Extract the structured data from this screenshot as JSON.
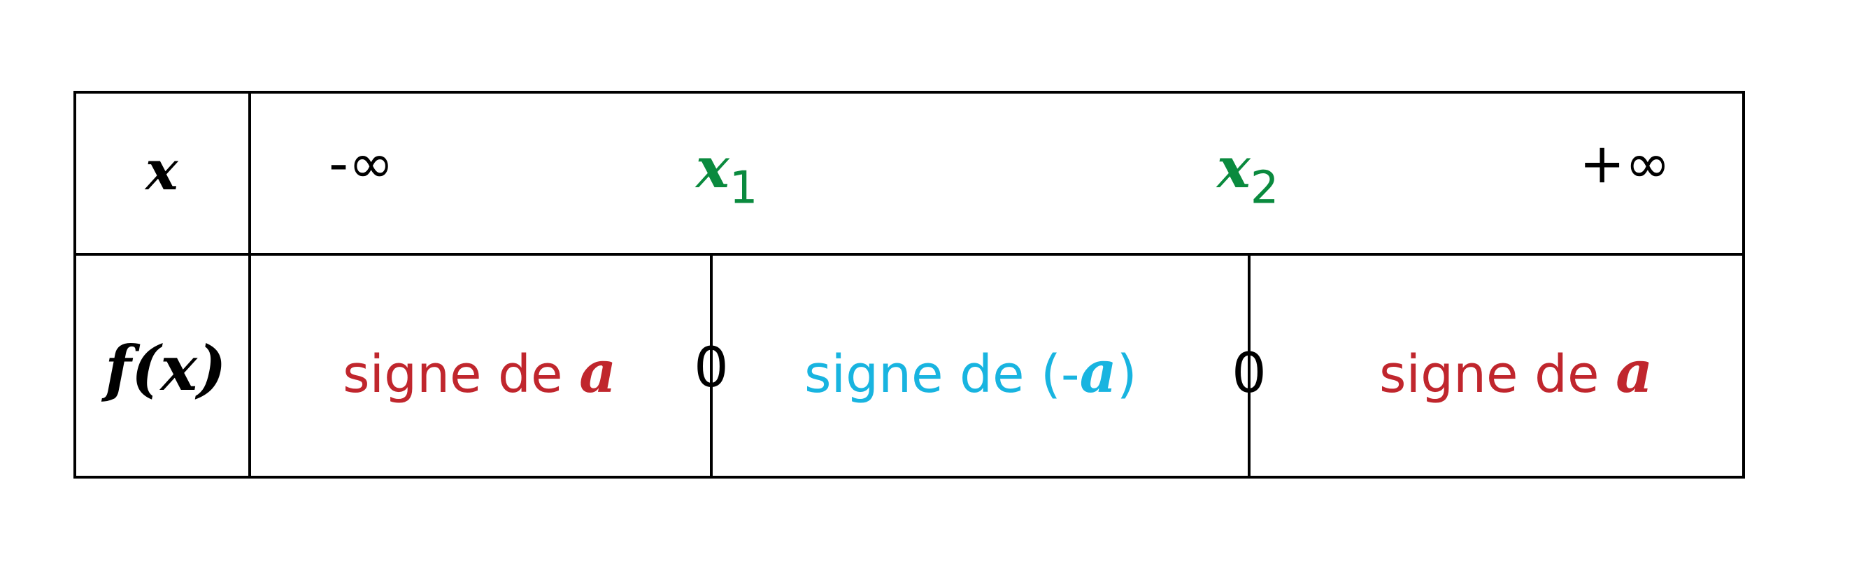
{
  "row_headers": {
    "x": "x",
    "fx": "f(x)"
  },
  "x_values": {
    "minus_inf": "-∞",
    "x1_base": "x",
    "x1_sub": "1",
    "x2_base": "x",
    "x2_sub": "2",
    "plus_inf": "+∞"
  },
  "signs": {
    "left": {
      "text": "signe de ",
      "var": "a",
      "suffix": ""
    },
    "middle": {
      "prefix": "signe de (-",
      "var": "a",
      "suffix": ")"
    },
    "right": {
      "text": "signe de ",
      "var": "a",
      "suffix": ""
    },
    "zero1": "0",
    "zero2": "0"
  },
  "colors": {
    "roots": "#0a8a3e",
    "sign_a": "#c0262d",
    "sign_minus_a": "#18b4e0",
    "lines": "#000000"
  }
}
